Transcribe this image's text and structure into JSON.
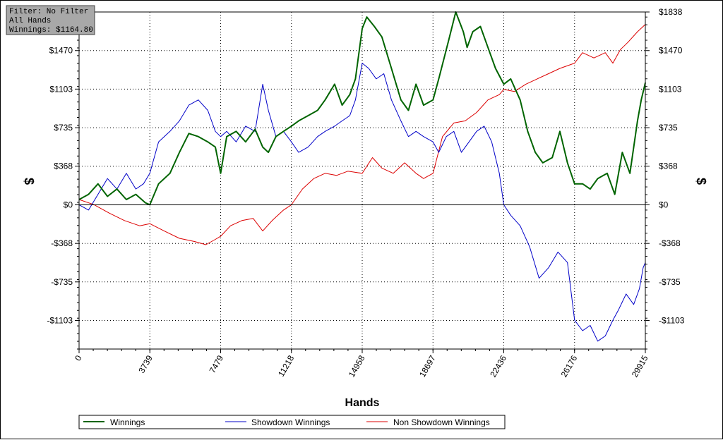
{
  "info_box": {
    "lines": [
      "Filter: No Filter",
      "All Hands",
      "Winnings: $1164.80"
    ]
  },
  "colors": {
    "winnings": "#006400",
    "showdown": "#0000c8",
    "non_showdown": "#dc0000",
    "info_box_bg": "#a8a8a8"
  },
  "chart_data": {
    "type": "line",
    "xlabel": "Hands",
    "ylabel": "$",
    "xlim": [
      0,
      29915
    ],
    "ylim": [
      -1375,
      1838
    ],
    "x_ticks": [
      0,
      3739,
      7479,
      11218,
      14958,
      18697,
      22436,
      26176,
      29915
    ],
    "x_tick_labels": [
      "0",
      "3739",
      "7479",
      "11218",
      "14958",
      "18697",
      "22436",
      "26176",
      "29915"
    ],
    "y_ticks": [
      1838,
      1470,
      1103,
      735,
      368,
      0,
      -368,
      -735,
      -1103
    ],
    "y_tick_labels": [
      "$1838",
      "$1470",
      "$1103",
      "$735",
      "$368",
      "$0",
      "-$368",
      "-$735",
      "-$1103"
    ],
    "grid": true,
    "legend_position": "bottom",
    "series": [
      {
        "name": "Winnings",
        "x": [
          0,
          500,
          1000,
          1500,
          2000,
          2500,
          3000,
          3500,
          3739,
          4200,
          4800,
          5300,
          5800,
          6300,
          6800,
          7200,
          7479,
          7800,
          8300,
          8800,
          9300,
          9700,
          10000,
          10400,
          10800,
          11218,
          11600,
          12100,
          12600,
          13000,
          13500,
          13900,
          14300,
          14600,
          14958,
          15200,
          15600,
          16000,
          16500,
          17000,
          17400,
          17800,
          18200,
          18697,
          19000,
          19500,
          19900,
          20300,
          20500,
          20800,
          21200,
          21600,
          22000,
          22436,
          22800,
          23300,
          23700,
          24100,
          24500,
          25000,
          25400,
          25800,
          26176,
          26600,
          27000,
          27400,
          27900,
          28300,
          28700,
          29100,
          29500,
          29700,
          29915
        ],
        "values": [
          50,
          100,
          200,
          80,
          150,
          50,
          100,
          20,
          0,
          200,
          300,
          500,
          680,
          650,
          600,
          550,
          300,
          650,
          700,
          600,
          720,
          550,
          500,
          650,
          700,
          750,
          800,
          850,
          900,
          1000,
          1150,
          950,
          1050,
          1200,
          1680,
          1790,
          1700,
          1600,
          1300,
          1000,
          900,
          1150,
          950,
          1000,
          1200,
          1550,
          1838,
          1650,
          1500,
          1650,
          1700,
          1500,
          1300,
          1150,
          1200,
          1000,
          700,
          500,
          400,
          450,
          700,
          400,
          200,
          200,
          150,
          250,
          300,
          100,
          500,
          300,
          800,
          1000,
          1164.8
        ]
      },
      {
        "name": "Showdown Winnings",
        "x": [
          0,
          500,
          1000,
          1500,
          2000,
          2500,
          3000,
          3400,
          3739,
          4200,
          4800,
          5300,
          5800,
          6300,
          6800,
          7200,
          7479,
          7800,
          8300,
          8800,
          9300,
          9700,
          10000,
          10400,
          10800,
          11218,
          11600,
          12100,
          12600,
          13000,
          13500,
          13900,
          14300,
          14600,
          14958,
          15300,
          15700,
          16100,
          16500,
          17000,
          17400,
          17800,
          18200,
          18697,
          19000,
          19400,
          19800,
          20200,
          20600,
          21000,
          21400,
          21800,
          22200,
          22436,
          22800,
          23300,
          23800,
          24300,
          24800,
          25300,
          25800,
          26176,
          26600,
          27000,
          27400,
          27800,
          28200,
          28500,
          28900,
          29300,
          29600,
          29800,
          29915
        ],
        "values": [
          0,
          -50,
          100,
          250,
          150,
          300,
          150,
          200,
          300,
          600,
          700,
          800,
          950,
          1000,
          900,
          700,
          650,
          700,
          600,
          750,
          700,
          1150,
          900,
          650,
          700,
          600,
          500,
          550,
          650,
          700,
          750,
          800,
          850,
          1000,
          1350,
          1300,
          1200,
          1250,
          1000,
          800,
          650,
          700,
          650,
          600,
          500,
          650,
          700,
          500,
          600,
          700,
          750,
          600,
          300,
          0,
          -100,
          -200,
          -400,
          -700,
          -600,
          -450,
          -550,
          -1100,
          -1200,
          -1150,
          -1300,
          -1250,
          -1100,
          -1000,
          -850,
          -950,
          -800,
          -600,
          -550
        ]
      },
      {
        "name": "Non Showdown Winnings",
        "x": [
          0,
          800,
          1600,
          2400,
          3200,
          3739,
          4500,
          5300,
          6100,
          6700,
          7200,
          7479,
          8000,
          8600,
          9200,
          9700,
          10200,
          10800,
          11218,
          11800,
          12400,
          13000,
          13600,
          14200,
          14958,
          15500,
          16000,
          16600,
          17200,
          17800,
          18200,
          18697,
          19200,
          19800,
          20400,
          21000,
          21600,
          22200,
          22436,
          23000,
          23600,
          24200,
          24800,
          25400,
          26176,
          26600,
          27200,
          27800,
          28200,
          28600,
          29000,
          29500,
          29915
        ],
        "values": [
          50,
          0,
          -80,
          -150,
          -200,
          -180,
          -250,
          -320,
          -350,
          -380,
          -330,
          -300,
          -200,
          -150,
          -130,
          -250,
          -150,
          -50,
          0,
          150,
          250,
          300,
          280,
          320,
          300,
          450,
          350,
          300,
          400,
          300,
          250,
          300,
          650,
          780,
          800,
          880,
          1000,
          1050,
          1100,
          1080,
          1150,
          1200,
          1250,
          1300,
          1350,
          1450,
          1400,
          1450,
          1350,
          1480,
          1550,
          1650,
          1720
        ]
      }
    ]
  }
}
